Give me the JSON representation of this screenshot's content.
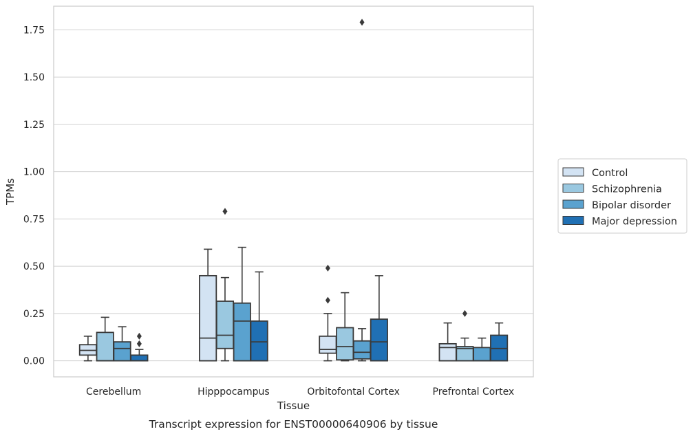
{
  "chart_data": {
    "type": "box",
    "xlabel": "Tissue",
    "ylabel": "TPMs",
    "caption": "Transcript expression for ENST00000640906 by tissue",
    "ylim": [
      -0.085,
      1.875
    ],
    "yticks": [
      0.0,
      0.25,
      0.5,
      0.75,
      1.0,
      1.25,
      1.5,
      1.75
    ],
    "ytick_labels": [
      "0.00",
      "0.25",
      "0.50",
      "0.75",
      "1.00",
      "1.25",
      "1.50",
      "1.75"
    ],
    "grid": "horizontal",
    "legend_position": "right",
    "categories": [
      "Cerebellum",
      "Hipppocampus",
      "Orbitofontal Cortex",
      "Prefrontal Cortex"
    ],
    "series": [
      {
        "name": "Control",
        "color": "#d3e3f3",
        "boxes": [
          {
            "min": 0.0,
            "q1": 0.03,
            "median": 0.055,
            "q3": 0.085,
            "max": 0.13,
            "outliers": []
          },
          {
            "min": 0.0,
            "q1": 0.0,
            "median": 0.12,
            "q3": 0.45,
            "max": 0.59,
            "outliers": []
          },
          {
            "min": 0.0,
            "q1": 0.04,
            "median": 0.06,
            "q3": 0.13,
            "max": 0.25,
            "outliers": [
              0.32,
              0.49
            ]
          },
          {
            "min": 0.0,
            "q1": 0.0,
            "median": 0.07,
            "q3": 0.09,
            "max": 0.2,
            "outliers": []
          }
        ]
      },
      {
        "name": "Schizophrenia",
        "color": "#9ac8e0",
        "boxes": [
          {
            "min": 0.0,
            "q1": 0.0,
            "median": 0.0,
            "q3": 0.15,
            "max": 0.23,
            "outliers": []
          },
          {
            "min": 0.0,
            "q1": 0.065,
            "median": 0.135,
            "q3": 0.315,
            "max": 0.44,
            "outliers": [
              0.79
            ]
          },
          {
            "min": 0.0,
            "q1": 0.005,
            "median": 0.075,
            "q3": 0.175,
            "max": 0.36,
            "outliers": []
          },
          {
            "min": 0.0,
            "q1": 0.0,
            "median": 0.065,
            "q3": 0.075,
            "max": 0.12,
            "outliers": [
              0.25
            ]
          }
        ]
      },
      {
        "name": "Bipolar disorder",
        "color": "#5aa2cf",
        "boxes": [
          {
            "min": 0.0,
            "q1": 0.0,
            "median": 0.065,
            "q3": 0.1,
            "max": 0.18,
            "outliers": []
          },
          {
            "min": 0.0,
            "q1": 0.0,
            "median": 0.21,
            "q3": 0.305,
            "max": 0.6,
            "outliers": []
          },
          {
            "min": 0.0,
            "q1": 0.01,
            "median": 0.045,
            "q3": 0.105,
            "max": 0.17,
            "outliers": [
              1.79
            ]
          },
          {
            "min": 0.0,
            "q1": 0.0,
            "median": 0.0,
            "q3": 0.07,
            "max": 0.12,
            "outliers": []
          }
        ]
      },
      {
        "name": "Major depression",
        "color": "#2070b4",
        "boxes": [
          {
            "min": 0.0,
            "q1": 0.0,
            "median": 0.0,
            "q3": 0.03,
            "max": 0.06,
            "outliers": [
              0.09,
              0.13
            ]
          },
          {
            "min": 0.0,
            "q1": 0.0,
            "median": 0.1,
            "q3": 0.21,
            "max": 0.47,
            "outliers": []
          },
          {
            "min": 0.0,
            "q1": 0.0,
            "median": 0.1,
            "q3": 0.22,
            "max": 0.45,
            "outliers": []
          },
          {
            "min": 0.0,
            "q1": 0.0,
            "median": 0.065,
            "q3": 0.135,
            "max": 0.2,
            "outliers": []
          }
        ]
      }
    ]
  }
}
